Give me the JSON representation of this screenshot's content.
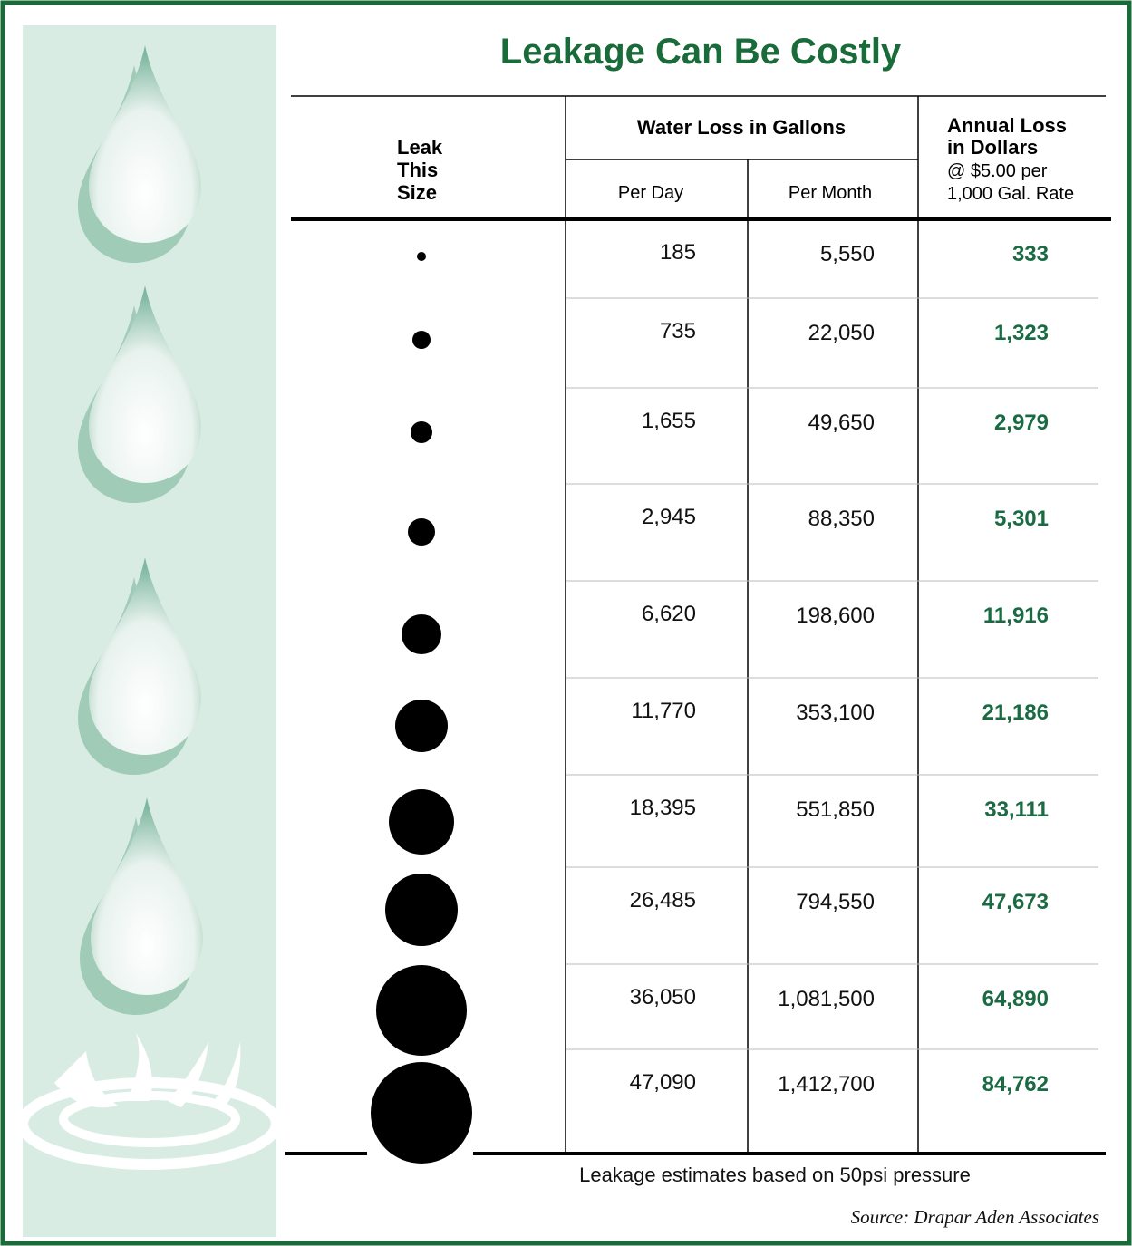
{
  "title": "Leakage Can Be Costly",
  "table": {
    "header": {
      "leak_size": [
        "Leak",
        "This",
        "Size"
      ],
      "water_loss": "Water Loss in Gallons",
      "per_day": "Per Day",
      "per_month": "Per Month",
      "annual_loss": [
        "Annual Loss",
        "in Dollars"
      ],
      "annual_rate": [
        "@ $5.00 per",
        "1,000 Gal. Rate"
      ]
    },
    "rows": [
      [
        "185",
        "5,550",
        "333"
      ],
      [
        "735",
        "22,050",
        "1,323"
      ],
      [
        "1,655",
        "49,650",
        "2,979"
      ],
      [
        "2,945",
        "88,350",
        "5,301"
      ],
      [
        "6,620",
        "198,600",
        "11,916"
      ],
      [
        "11,770",
        "353,100",
        "21,186"
      ],
      [
        "18,395",
        "551,850",
        "33,111"
      ],
      [
        "26,485",
        "794,550",
        "47,673"
      ],
      [
        "36,050",
        "1,081,500",
        "64,890"
      ],
      [
        "47,090",
        "1,412,700",
        "84,762"
      ]
    ]
  },
  "footnote": "Leakage estimates based on 50psi pressure",
  "source": "Source: Drapar Aden Associates"
}
